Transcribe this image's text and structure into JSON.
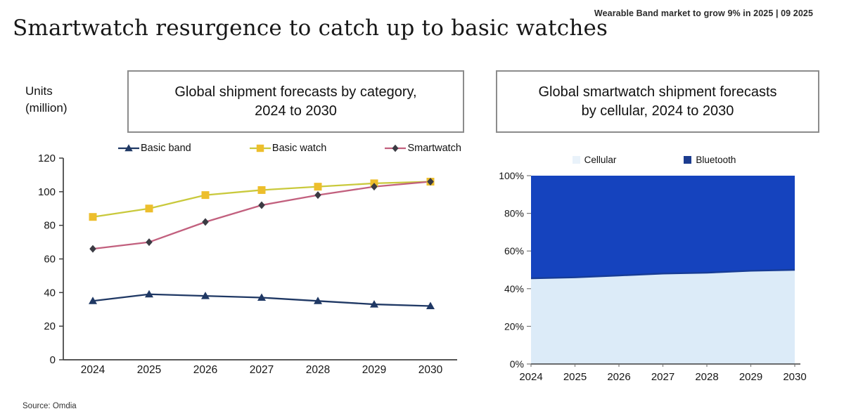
{
  "page": {
    "annotation": "Wearable Band market to grow 9% in 2025 | 09 2025",
    "title": "Smartwatch resurgence to catch up to basic watches",
    "units_label_line1": "Units",
    "units_label_line2": "(million)",
    "source": "Source: Omdia"
  },
  "left_box": {
    "lines": [
      "Global shipment forecasts by category,",
      "2024 to 2030"
    ]
  },
  "right_box": {
    "lines": [
      "Global smartwatch shipment forecasts",
      "by cellular, 2024 to 2030"
    ]
  },
  "colors": {
    "basic_band": "#1F3864",
    "basic_watch_marker": "#EDBE2C",
    "basic_watch_line": "#C9C93C",
    "smartwatch_marker": "#3B3B43",
    "smartwatch_line": "#C2607E",
    "cellular_fill": "#DCEBF8",
    "bluetooth_fill": "#1543BE",
    "boundary_line": "#173C96",
    "axis": "#3f3f3f"
  },
  "chart_data": [
    {
      "type": "line",
      "title": "Global shipment forecasts by category, 2024 to 2030",
      "categories": [
        "2024",
        "2025",
        "2026",
        "2027",
        "2028",
        "2029",
        "2030"
      ],
      "series": [
        {
          "name": "Basic band",
          "marker": "triangle",
          "marker_color": "#1F3864",
          "line_color": "#1F3864",
          "values": [
            35,
            39,
            38,
            37,
            35,
            33,
            32
          ]
        },
        {
          "name": "Basic watch",
          "marker": "square",
          "marker_color": "#EDBE2C",
          "line_color": "#C9C93C",
          "values": [
            85,
            90,
            98,
            101,
            103,
            105,
            106
          ]
        },
        {
          "name": "Smartwatch",
          "marker": "diamond",
          "marker_color": "#3B3B43",
          "line_color": "#C2607E",
          "values": [
            66,
            70,
            82,
            92,
            98,
            103,
            106
          ]
        }
      ],
      "xlabel": "",
      "ylabel": "Units (million)",
      "ylim": [
        0,
        120
      ],
      "yticks": [
        0,
        20,
        40,
        60,
        80,
        100,
        120
      ],
      "grid": false,
      "legend_position": "top"
    },
    {
      "type": "area",
      "title": "Global smartwatch shipment forecasts by cellular, 2024 to 2030",
      "categories": [
        "2024",
        "2025",
        "2026",
        "2027",
        "2028",
        "2029",
        "2030"
      ],
      "stacked_percent": true,
      "series": [
        {
          "name": "Cellular",
          "fill": "#DCEBF8",
          "legend_color": "#E9F2FA",
          "values": [
            45.5,
            46,
            47,
            48,
            48.5,
            49.5,
            50
          ]
        },
        {
          "name": "Bluetooth",
          "fill": "#1543BE",
          "legend_color": "#1C3C8F",
          "values": [
            54.5,
            54,
            53,
            52,
            51.5,
            50.5,
            50
          ]
        }
      ],
      "xlabel": "",
      "ylabel": "",
      "ylim": [
        0,
        100
      ],
      "yticks": [
        0,
        20,
        40,
        60,
        80,
        100
      ],
      "ytick_suffix": "%",
      "grid": false,
      "legend_position": "top"
    }
  ]
}
